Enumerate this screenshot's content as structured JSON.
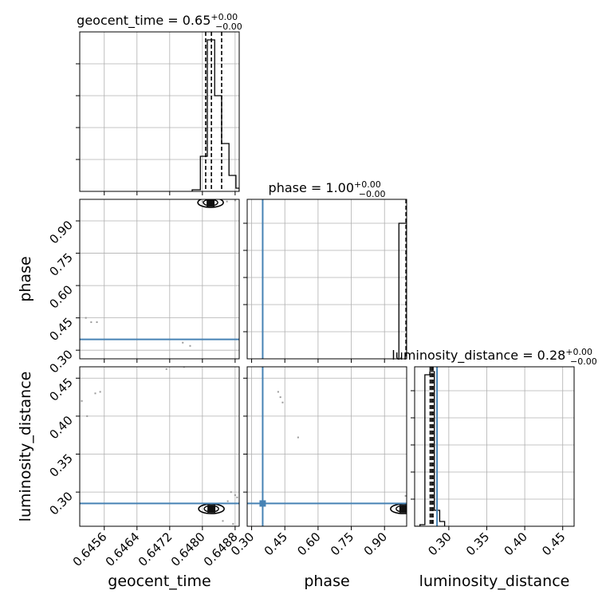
{
  "chart_data": {
    "type": "corner",
    "parameters": [
      "geocent_time",
      "phase",
      "luminosity_distance"
    ],
    "injection_color": "#4682b4",
    "panels": [
      {
        "id": "hist-geocent_time",
        "type": "histogram",
        "title_text": "geocent_time = 0.65",
        "title_plus": "+0.00",
        "title_minus": "−0.00",
        "xlim": [
          0.645,
          0.6489
        ],
        "ylim": [
          0,
          1.0
        ],
        "xticks": [
          0.6456,
          0.6464,
          0.6472,
          0.648,
          0.6488
        ],
        "yticks": [
          0.2,
          0.4,
          0.6,
          0.8
        ],
        "grid": true,
        "bins": [
          [
            0.64775,
            0.64795,
            0.01
          ],
          [
            0.64795,
            0.64812,
            0.22
          ],
          [
            0.64812,
            0.6483,
            0.95
          ],
          [
            0.6483,
            0.64847,
            0.6
          ],
          [
            0.64847,
            0.64865,
            0.3
          ],
          [
            0.64865,
            0.64882,
            0.1
          ],
          [
            0.64882,
            0.6489,
            0.02
          ]
        ],
        "quantiles": [
          0.64808,
          0.64822,
          0.64847
        ]
      },
      {
        "id": "scatter-phase-vs-geocent_time",
        "type": "density",
        "xlim": [
          0.645,
          0.6489
        ],
        "ylim": [
          0.26,
          1.0
        ],
        "xticks": [
          0.6456,
          0.6464,
          0.6472,
          0.648,
          0.6488
        ],
        "yticks": [
          0.3,
          0.45,
          0.6,
          0.75,
          0.9
        ],
        "ytick_labels": [
          "0.30",
          "0.45",
          "0.60",
          "0.75",
          "0.90"
        ],
        "ylabel": "phase",
        "grid": true,
        "truth_h": 0.35,
        "core": {
          "x": 0.6482,
          "y": 0.985
        },
        "points": [
          [
            0.64515,
            0.45
          ],
          [
            0.64528,
            0.43
          ],
          [
            0.64542,
            0.43
          ],
          [
            0.64752,
            0.335
          ],
          [
            0.6477,
            0.32
          ],
          [
            0.648,
            0.99
          ],
          [
            0.6486,
            0.99
          ],
          [
            0.6488,
            0.995
          ]
        ]
      },
      {
        "id": "hist-phase",
        "type": "histogram",
        "title_text": "phase = 1.00",
        "title_plus": "+0.00",
        "title_minus": "−0.00",
        "xlim": [
          0.28,
          1.0
        ],
        "ylim": [
          0,
          1.0
        ],
        "xticks": [
          0.3,
          0.45,
          0.6,
          0.75,
          0.9
        ],
        "yticks": [
          0.17,
          0.34,
          0.51,
          0.68,
          0.85
        ],
        "grid": true,
        "bins": [
          [
            0.965,
            1.0,
            0.85
          ]
        ],
        "quantiles": [
          0.997
        ],
        "truth_v": 0.35
      },
      {
        "id": "scatter-luminosity_distance-vs-geocent_time",
        "type": "density",
        "xlim": [
          0.645,
          0.6489
        ],
        "ylim": [
          0.255,
          0.465
        ],
        "xticks": [
          0.6456,
          0.6464,
          0.6472,
          0.648,
          0.6488
        ],
        "xtick_labels": [
          "0.6456",
          "0.6464",
          "0.6472",
          "0.6480",
          "0.6488"
        ],
        "xlabel": "geocent_time",
        "yticks": [
          0.3,
          0.35,
          0.4,
          0.45
        ],
        "ytick_labels": [
          "0.30",
          "0.35",
          "0.40",
          "0.45"
        ],
        "ylabel": "luminosity_distance",
        "grid": true,
        "truth_h": 0.285,
        "core": {
          "x": 0.64822,
          "y": 0.278
        },
        "points": [
          [
            0.64505,
            0.42
          ],
          [
            0.64518,
            0.4
          ],
          [
            0.64538,
            0.43
          ],
          [
            0.6455,
            0.432
          ],
          [
            0.64712,
            0.462
          ],
          [
            0.64755,
            0.465
          ],
          [
            0.6487,
            0.3
          ],
          [
            0.6488,
            0.296
          ],
          [
            0.64885,
            0.293
          ],
          [
            0.64862,
            0.288
          ],
          [
            0.6485,
            0.262
          ],
          [
            0.64875,
            0.258
          ]
        ]
      },
      {
        "id": "scatter-luminosity_distance-vs-phase",
        "type": "density",
        "xlim": [
          0.28,
          1.0
        ],
        "ylim": [
          0.255,
          0.465
        ],
        "xticks": [
          0.3,
          0.45,
          0.6,
          0.75,
          0.9
        ],
        "xtick_labels": [
          "0.30",
          "0.45",
          "0.60",
          "0.75",
          "0.90"
        ],
        "xlabel": "phase",
        "yticks": [
          0.3,
          0.35,
          0.4,
          0.45
        ],
        "grid": true,
        "truth_h": 0.285,
        "truth_v": 0.35,
        "core": {
          "x": 0.985,
          "y": 0.278
        },
        "points": [
          [
            0.42,
            0.432
          ],
          [
            0.43,
            0.425
          ],
          [
            0.44,
            0.418
          ],
          [
            0.51,
            0.372
          ],
          [
            0.995,
            0.295
          ]
        ]
      },
      {
        "id": "hist-luminosity_distance",
        "type": "histogram",
        "title_text": "luminosity_distance = 0.28",
        "title_plus": "+0.00",
        "title_minus": "−0.00",
        "xlim": [
          0.255,
          0.465
        ],
        "ylim": [
          0,
          1.0
        ],
        "xticks": [
          0.3,
          0.35,
          0.4,
          0.45
        ],
        "xtick_labels": [
          "0.30",
          "0.35",
          "0.40",
          "0.45"
        ],
        "xlabel": "luminosity_distance",
        "yticks": [
          0.17,
          0.34,
          0.51,
          0.68,
          0.85
        ],
        "grid": true,
        "bins": [
          [
            0.255,
            0.262,
            0.0
          ],
          [
            0.262,
            0.2685,
            0.01
          ],
          [
            0.2685,
            0.275,
            0.95
          ],
          [
            0.275,
            0.281,
            0.97
          ],
          [
            0.281,
            0.288,
            0.1
          ],
          [
            0.288,
            0.2945,
            0.03
          ]
        ],
        "quantiles": [
          0.2755,
          0.2775,
          0.2792
        ],
        "truth_v": 0.2845
      }
    ]
  }
}
